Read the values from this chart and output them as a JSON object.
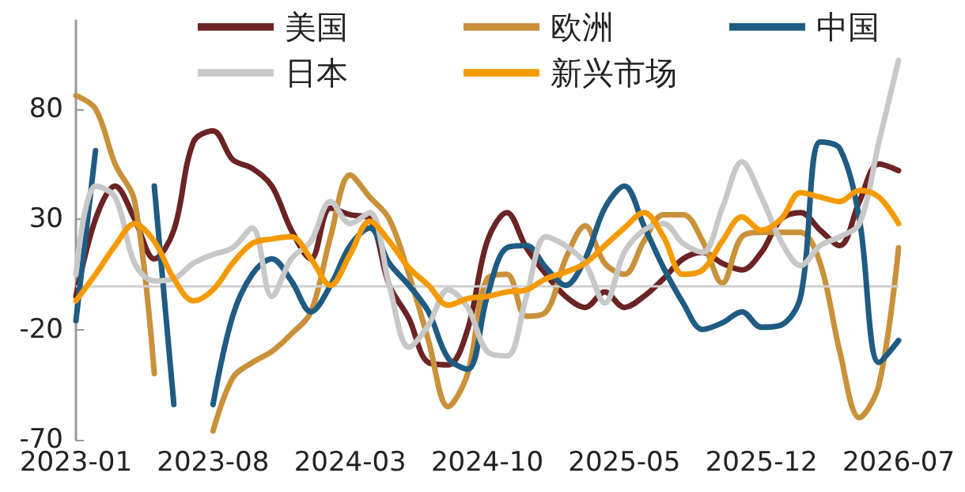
{
  "chart_data": {
    "type": "line",
    "categories": [
      "2023-01",
      null,
      null,
      null,
      null,
      null,
      null,
      "2023-08",
      null,
      null,
      null,
      null,
      null,
      null,
      "2024-03",
      null,
      null,
      null,
      null,
      null,
      null,
      "2024-10",
      null,
      null,
      null,
      null,
      null,
      null,
      "2025-05",
      null,
      null,
      null,
      null,
      null,
      null,
      "2025-12",
      null,
      null,
      null,
      null,
      null,
      null,
      "2026-07"
    ],
    "series": [
      {
        "name": "美国",
        "color": "#6b2323",
        "values": [
          -5,
          30,
          45,
          30,
          12,
          25,
          65,
          70,
          57,
          53,
          45,
          25,
          12,
          35,
          32,
          30,
          0,
          -15,
          -35,
          -36,
          -20,
          20,
          33,
          17,
          5,
          -5,
          -10,
          -3,
          -10,
          -5,
          3,
          12,
          15,
          10,
          7,
          15,
          30,
          33,
          25,
          18,
          38,
          55,
          52
        ]
      },
      {
        "name": "欧洲",
        "color": "#c8913a",
        "values": [
          86,
          80,
          55,
          38,
          -40,
          null,
          null,
          -66,
          -42,
          -35,
          -30,
          -22,
          -12,
          22,
          50,
          40,
          30,
          5,
          -25,
          -55,
          -40,
          3,
          5,
          -14,
          -12,
          12,
          27,
          10,
          5,
          20,
          32,
          32,
          20,
          1,
          22,
          24,
          24,
          24,
          10,
          -30,
          -60,
          -45,
          17
        ]
      },
      {
        "name": "中国",
        "color": "#1f5b82",
        "values": [
          -16,
          61,
          null,
          null,
          45,
          -54,
          null,
          -54,
          -14,
          5,
          12,
          2,
          -12,
          0,
          18,
          26,
          10,
          0,
          -12,
          -33,
          -38,
          -5,
          17,
          18,
          8,
          0,
          12,
          35,
          45,
          27,
          8,
          -8,
          -20,
          -17,
          -12,
          -19,
          -18,
          -5,
          65,
          62,
          30,
          -35,
          -25
        ]
      },
      {
        "name": "日本",
        "color": "#c8c8c8",
        "values": [
          5,
          45,
          40,
          10,
          2,
          3,
          10,
          14,
          17,
          26,
          -5,
          12,
          20,
          38,
          28,
          33,
          0,
          -28,
          -18,
          -2,
          -10,
          -30,
          -32,
          -5,
          22,
          18,
          10,
          -8,
          15,
          25,
          28,
          19,
          15,
          35,
          56,
          40,
          20,
          9,
          18,
          22,
          28,
          65,
          102
        ]
      },
      {
        "name": "新兴市场",
        "color": "#f59a00",
        "values": [
          -7,
          5,
          18,
          28,
          20,
          3,
          -7,
          -2,
          10,
          19,
          21,
          22,
          12,
          0,
          14,
          29,
          20,
          8,
          0,
          -9,
          -6,
          -5,
          -3,
          -2,
          3,
          6,
          10,
          18,
          26,
          33,
          22,
          5,
          7,
          20,
          31,
          25,
          30,
          42,
          40,
          38,
          43,
          40,
          28
        ]
      }
    ],
    "ylim": [
      -70,
      120
    ],
    "yticks": [
      -70,
      -20,
      30,
      80
    ],
    "ref_lines": [
      {
        "axis": "y",
        "value": 0,
        "color": "#d0d0d0"
      }
    ],
    "legend": "top",
    "grid": false,
    "marker": "none",
    "line_style": "solid"
  }
}
